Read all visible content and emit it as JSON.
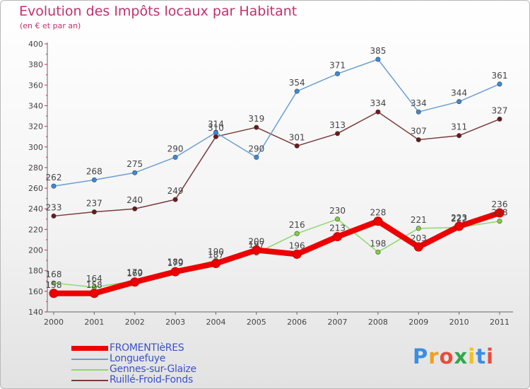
{
  "title": "Evolution des Impôts locaux par Habitant",
  "subtitle": "(en € et par an)",
  "logo": {
    "text": "Proxiti",
    "colors": [
      "#3d8de0",
      "#f0a020",
      "#e84c3c",
      "#2ea84a",
      "#f0c020",
      "#3d8de0",
      "#e84c3c"
    ]
  },
  "chart_data": {
    "type": "line",
    "x": [
      "2000",
      "2001",
      "2002",
      "2003",
      "2004",
      "2005",
      "2006",
      "2007",
      "2008",
      "2009",
      "2010",
      "2011"
    ],
    "ylim": [
      140,
      400
    ],
    "yticks": [
      140,
      160,
      180,
      200,
      220,
      240,
      260,
      280,
      300,
      320,
      340,
      360,
      380,
      400
    ],
    "grid": false,
    "legend_position": "bottom-left",
    "series": [
      {
        "name": "FROMENTIèRES",
        "color": "#ee0000",
        "marker_color": "#ee0000",
        "values": [
          158,
          158,
          169,
          179,
          187,
          200,
          196,
          213,
          228,
          203,
          223,
          236
        ],
        "labels": [
          158,
          158,
          169,
          179,
          187,
          200,
          196,
          213,
          228,
          203,
          223,
          236
        ],
        "thick": true
      },
      {
        "name": "Longuefuye",
        "color": "#6a9fd4",
        "marker_color": "#3a8ad8",
        "values": [
          262,
          268,
          275,
          290,
          314,
          290,
          354,
          371,
          385,
          334,
          344,
          361
        ],
        "labels": [
          262,
          268,
          275,
          290,
          314,
          290,
          354,
          371,
          385,
          334,
          344,
          361
        ]
      },
      {
        "name": "Gennes-sur-Glaize",
        "color": "#8ed86a",
        "marker_color": "#80d040",
        "values": [
          168,
          164,
          170,
          180,
          190,
          197,
          216,
          230,
          198,
          221,
          222,
          228
        ],
        "labels": [
          168,
          164,
          170,
          180,
          190,
          197,
          216,
          230,
          198,
          221,
          222,
          228
        ]
      },
      {
        "name": "Ruillé-Froid-Fonds",
        "color": "#7a3a3a",
        "marker_color": "#6a1a1a",
        "values": [
          233,
          237,
          240,
          249,
          310,
          319,
          301,
          313,
          334,
          307,
          311,
          327
        ],
        "labels": [
          233,
          237,
          240,
          249,
          310,
          319,
          301,
          313,
          334,
          307,
          311,
          327
        ]
      }
    ]
  }
}
